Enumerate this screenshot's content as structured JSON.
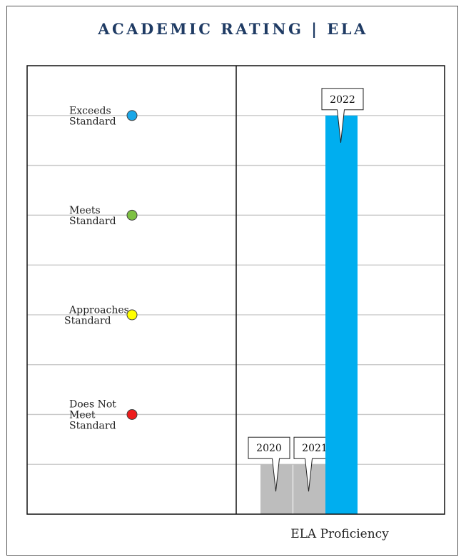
{
  "title": "ACADEMIC RATING | ELA",
  "chart_data": {
    "type": "bar",
    "xlabel": "ELA Proficiency",
    "ylim": [
      0,
      4.5
    ],
    "grid": true,
    "levels": [
      {
        "lines": [
          "Does Not",
          "Meet",
          "Standard"
        ],
        "value": 1,
        "color": "#ee1c1c"
      },
      {
        "lines": [
          "Approaches",
          "Standard"
        ],
        "value": 2,
        "color": "#ffff00"
      },
      {
        "lines": [
          "Meets",
          "Standard"
        ],
        "value": 3,
        "color": "#7dc142"
      },
      {
        "lines": [
          "Exceeds",
          "Standard"
        ],
        "value": 4,
        "color": "#1aa7e8"
      }
    ],
    "categories": [
      "2020",
      "2021",
      "2022"
    ],
    "values": [
      0.5,
      0.5,
      4
    ],
    "bar_colors": [
      "#bdbdbd",
      "#bdbdbd",
      "#00aeef"
    ]
  }
}
